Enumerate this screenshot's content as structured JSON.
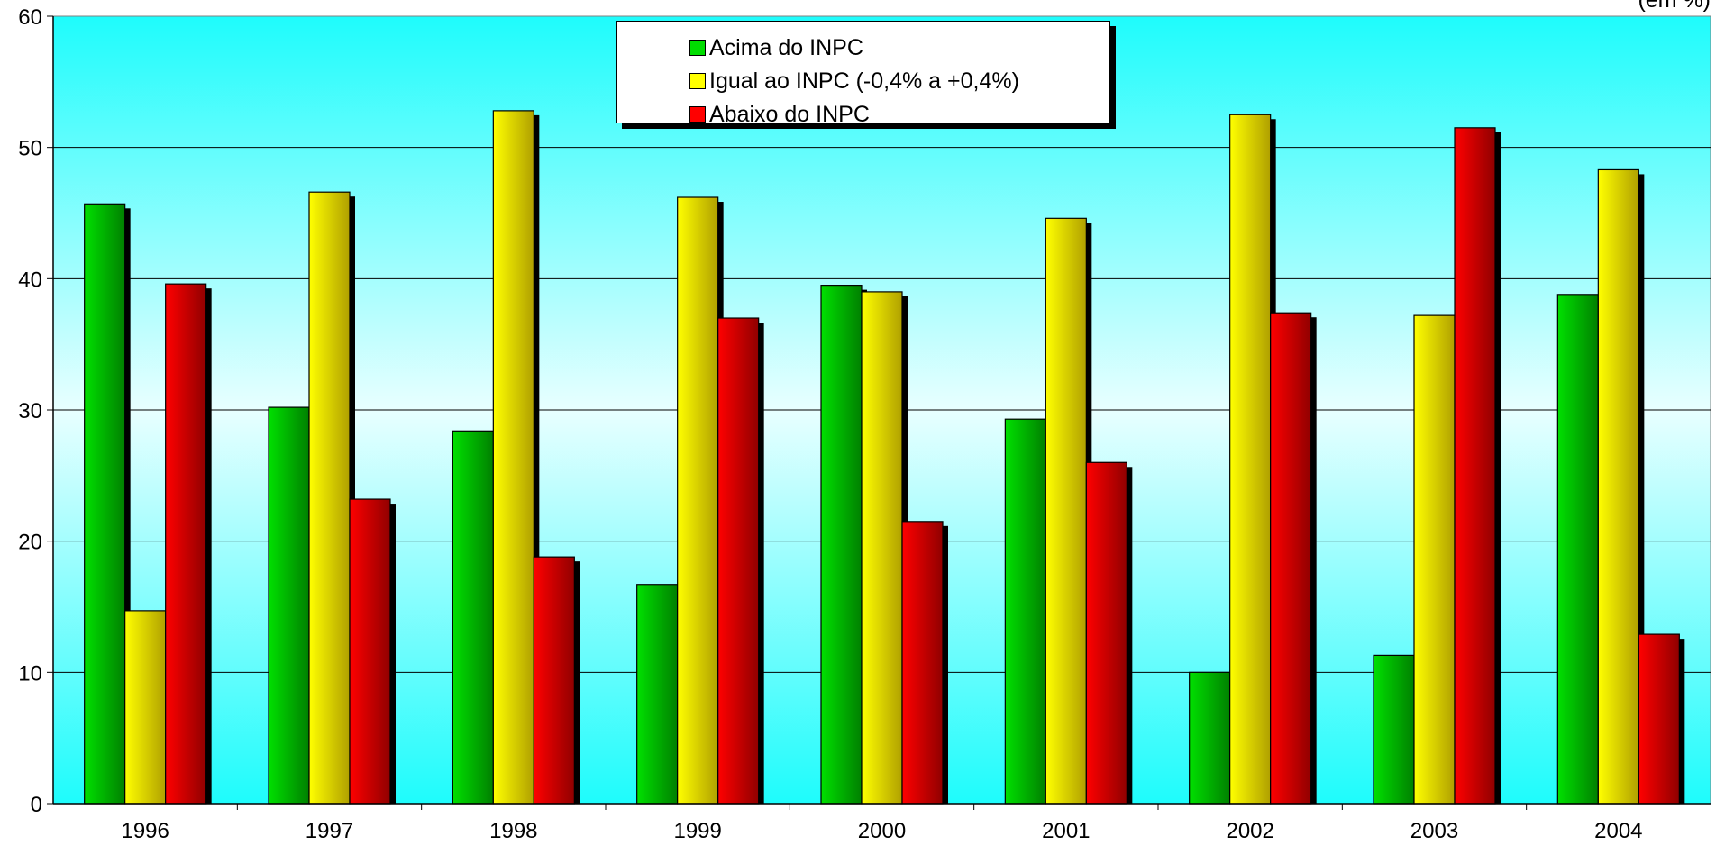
{
  "corner_label": "(em %)",
  "chart_data": {
    "type": "bar",
    "title": "",
    "xlabel": "",
    "ylabel": "",
    "categories": [
      "1996",
      "1997",
      "1998",
      "1999",
      "2000",
      "2001",
      "2002",
      "2003",
      "2004"
    ],
    "ylim": [
      0,
      60
    ],
    "yticks": [
      "0",
      "10",
      "20",
      "30",
      "40",
      "50",
      "60"
    ],
    "grid": true,
    "legend_position": "top-center",
    "series": [
      {
        "name": "Acima do INPC",
        "color": "#00dd00",
        "values": [
          45.7,
          30.2,
          28.4,
          16.7,
          39.5,
          29.3,
          10.0,
          11.3,
          38.8
        ]
      },
      {
        "name": "Igual ao INPC (-0,4% a +0,4%)",
        "color": "#ffff00",
        "values": [
          14.7,
          46.6,
          52.8,
          46.2,
          39.0,
          44.6,
          52.5,
          37.2,
          48.3
        ]
      },
      {
        "name": "Abaixo do INPC",
        "color": "#ff0000",
        "values": [
          39.6,
          23.2,
          18.8,
          37.0,
          21.5,
          26.0,
          37.4,
          51.5,
          12.9
        ]
      }
    ]
  }
}
